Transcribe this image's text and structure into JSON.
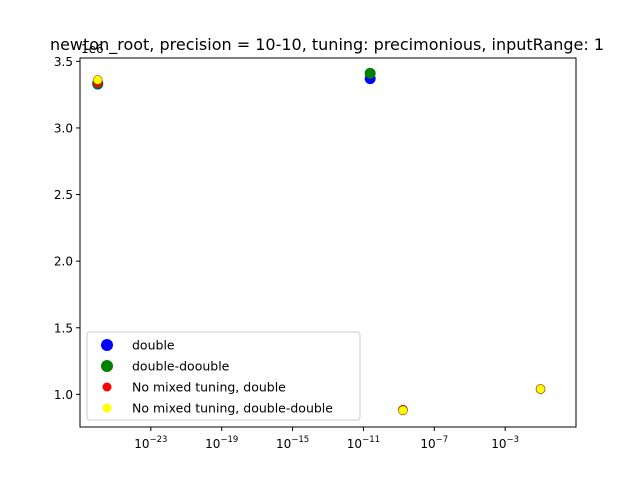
{
  "chart_data": {
    "type": "scatter",
    "title": "newton_root, precision = 10-10, tuning: precimonious, inputRange: 1",
    "xlabel": "",
    "ylabel": "",
    "x_scale": "log",
    "y_scale": "linear",
    "y_offset_label": "1e6",
    "xlim": [
      1e-27,
      10.0
    ],
    "ylim": [
      0.755,
      3.525
    ],
    "x_ticks": [
      {
        "value": 1e-23,
        "label": "10",
        "exp": "−23"
      },
      {
        "value": 1e-19,
        "label": "10",
        "exp": "−19"
      },
      {
        "value": 1e-15,
        "label": "10",
        "exp": "−15"
      },
      {
        "value": 1e-11,
        "label": "10",
        "exp": "−11"
      },
      {
        "value": 1e-07,
        "label": "10",
        "exp": "−7"
      },
      {
        "value": 0.001,
        "label": "10",
        "exp": "−3"
      }
    ],
    "y_ticks": [
      {
        "value": 1.0,
        "label": "1.0"
      },
      {
        "value": 1.5,
        "label": "1.5"
      },
      {
        "value": 2.0,
        "label": "2.0"
      },
      {
        "value": 2.5,
        "label": "2.5"
      },
      {
        "value": 3.0,
        "label": "3.0"
      },
      {
        "value": 3.5,
        "label": "3.5"
      }
    ],
    "grid": false,
    "legend_position": "bottom-left",
    "series": [
      {
        "name": "double",
        "color": "#0000ff",
        "marker": "large",
        "points": [
          {
            "x": 1e-26,
            "y": 3.33
          },
          {
            "x": 2.4e-11,
            "y": 3.37
          }
        ]
      },
      {
        "name": "double-doouble",
        "color": "#008000",
        "marker": "large",
        "points": [
          {
            "x": 1e-26,
            "y": 3.335
          },
          {
            "x": 2.4e-11,
            "y": 3.41
          }
        ]
      },
      {
        "name": "No mixed tuning, double",
        "color": "#ff0000",
        "marker": "small",
        "points": [
          {
            "x": 1e-26,
            "y": 3.34
          },
          {
            "x": 1.7e-09,
            "y": 0.885
          },
          {
            "x": 0.1,
            "y": 1.04
          }
        ]
      },
      {
        "name": "No mixed tuning, double-double",
        "color": "#ffff00",
        "marker": "small",
        "points": [
          {
            "x": 1e-26,
            "y": 3.36
          },
          {
            "x": 1.7e-09,
            "y": 0.88
          },
          {
            "x": 0.1,
            "y": 1.04
          }
        ]
      }
    ]
  }
}
